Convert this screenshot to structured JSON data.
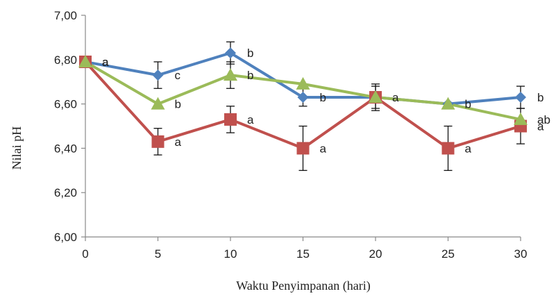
{
  "chart_data": {
    "type": "line",
    "xlabel": "Waktu Penyimpanan (hari)",
    "ylabel": "Nilai pH",
    "x": [
      0,
      5,
      10,
      15,
      20,
      25,
      30
    ],
    "x_tick_labels": [
      "0",
      "5",
      "10",
      "15",
      "20",
      "25",
      "30"
    ],
    "ylim": [
      6.0,
      7.0
    ],
    "y_ticks": [
      6.0,
      6.2,
      6.4,
      6.6,
      6.8,
      7.0
    ],
    "y_tick_labels": [
      "6,00",
      "6,20",
      "6,40",
      "6,60",
      "6,80",
      "7,00"
    ],
    "grid": false,
    "legend": "none",
    "series": [
      {
        "color": "#4f81bd",
        "marker": "diamond",
        "values": [
          6.79,
          6.73,
          6.83,
          6.63,
          6.63,
          6.6,
          6.63
        ],
        "errors": [
          0.0,
          0.06,
          0.05,
          0.04,
          0.05,
          0.0,
          0.05
        ],
        "labels": [
          "a",
          "c",
          "b",
          "b",
          "",
          "",
          "b"
        ]
      },
      {
        "color": "#c0504d",
        "marker": "square",
        "values": [
          6.79,
          6.43,
          6.53,
          6.4,
          6.63,
          6.4,
          6.5
        ],
        "errors": [
          0.0,
          0.06,
          0.06,
          0.1,
          0.06,
          0.1,
          0.08
        ],
        "labels": [
          "a",
          "a",
          "a",
          "a",
          "a",
          "a",
          "a"
        ]
      },
      {
        "color": "#9bbb59",
        "marker": "triangle",
        "values": [
          6.79,
          6.6,
          6.73,
          6.69,
          6.63,
          6.6,
          6.53
        ],
        "errors": [
          0.0,
          0.0,
          0.06,
          0.0,
          0.0,
          0.0,
          0.0
        ],
        "labels": [
          "a",
          "b",
          "b",
          "",
          "",
          "b",
          "ab"
        ]
      }
    ]
  }
}
